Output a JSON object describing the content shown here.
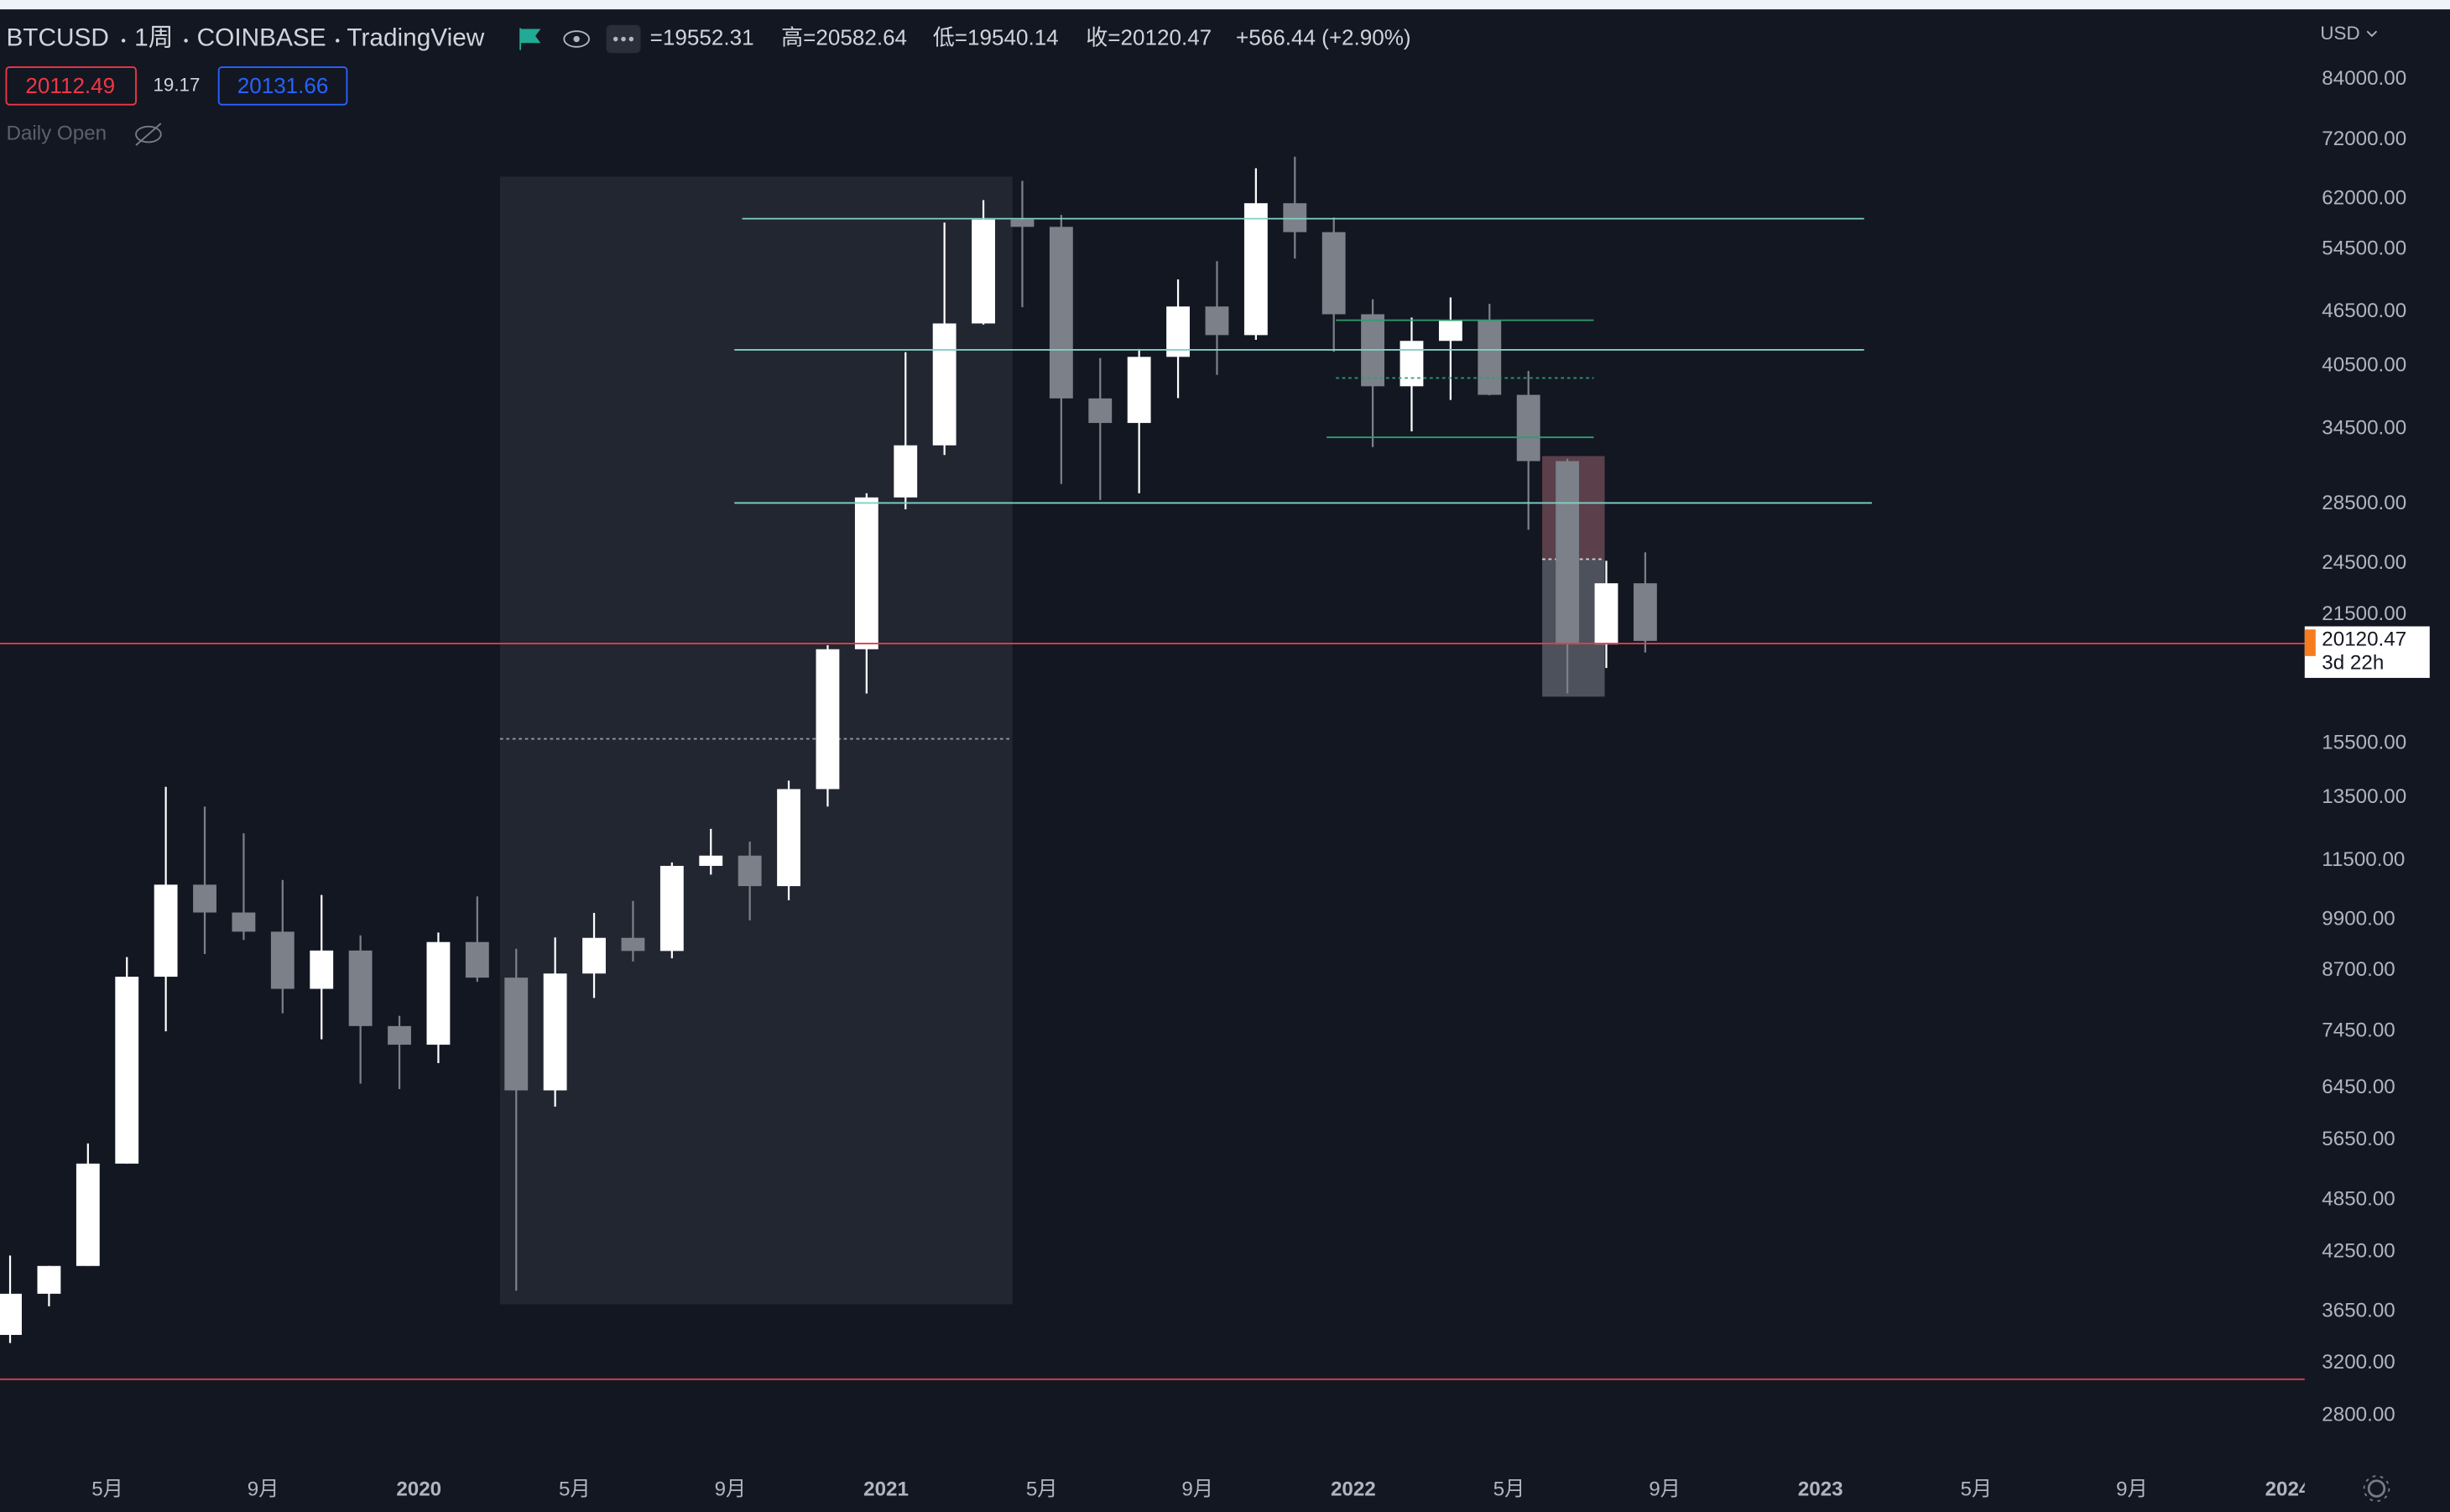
{
  "header": {
    "symbol": "BTCUSD",
    "interval": "1周",
    "exchange": "COINBASE",
    "source": "TradingView",
    "ohlc": [
      "=19552.31",
      "高=20582.64",
      "低=19540.14",
      "收=20120.47",
      "+566.44 (+2.90%)"
    ],
    "sell": "20112.49",
    "spread": "19.17",
    "buy": "20131.66",
    "indicator": "Daily Open",
    "currency": "USD",
    "last_price": "20120.47",
    "countdown": "3d 22h"
  },
  "chart_data": {
    "type": "candlestick",
    "log_scale": true,
    "grid": false,
    "up_color": "#ffffff",
    "down_color": "#7c8089",
    "x": [
      "2019-02",
      "2019-03",
      "2019-04",
      "2019-05",
      "2019-06",
      "2019-07",
      "2019-08",
      "2019-09",
      "2019-10",
      "2019-11",
      "2019-12",
      "2020-01",
      "2020-02",
      "2020-03",
      "2020-04",
      "2020-05",
      "2020-06",
      "2020-07",
      "2020-08",
      "2020-09",
      "2020-10",
      "2020-11",
      "2020-12",
      "2021-01",
      "2021-02",
      "2021-03",
      "2021-04",
      "2021-05",
      "2021-06",
      "2021-07",
      "2021-08",
      "2021-09",
      "2021-10",
      "2021-11",
      "2021-12",
      "2022-01",
      "2022-02",
      "2022-03",
      "2022-04",
      "2022-05",
      "2022-06",
      "2022-07",
      "2022-08"
    ],
    "open": [
      3440,
      3820,
      4100,
      5320,
      8560,
      10820,
      10080,
      9600,
      8300,
      9150,
      7550,
      7200,
      9350,
      8540,
      6410,
      8630,
      9450,
      9140,
      11350,
      11650,
      10780,
      13800,
      19700,
      28990,
      33100,
      45140,
      58800,
      57720,
      37300,
      35040,
      41460,
      47130,
      43820,
      61300,
      56950,
      46210,
      38470,
      43180,
      45540,
      37640,
      31800,
      19940,
      23300
    ],
    "high": [
      4210,
      4100,
      5600,
      9000,
      13880,
      13200,
      12330,
      10950,
      10540,
      9510,
      7750,
      9580,
      10500,
      9190,
      9460,
      10070,
      10380,
      11450,
      12470,
      12070,
      14100,
      19900,
      29300,
      41950,
      58350,
      61780,
      64900,
      59500,
      41330,
      42300,
      50500,
      52900,
      67000,
      69000,
      59100,
      47990,
      45820,
      48230,
      47450,
      40000,
      31990,
      24670,
      25210
    ],
    "low": [
      3370,
      3700,
      4100,
      5320,
      7450,
      9070,
      9400,
      7800,
      7300,
      6520,
      6430,
      6870,
      8450,
      3850,
      6150,
      8110,
      8900,
      8970,
      11100,
      9880,
      10400,
      13200,
      17600,
      28130,
      32300,
      45000,
      47050,
      30000,
      28800,
      29300,
      37330,
      39600,
      43300,
      53250,
      42000,
      32950,
      34300,
      37160,
      37600,
      26700,
      17600,
      18780,
      19540
    ],
    "close": [
      3820,
      4100,
      5320,
      8560,
      10820,
      10080,
      9600,
      8300,
      9150,
      7550,
      7200,
      9350,
      8540,
      6410,
      8630,
      9450,
      9140,
      11350,
      11650,
      10780,
      13800,
      19700,
      28990,
      33100,
      45140,
      58800,
      57720,
      37300,
      35040,
      41460,
      47130,
      43820,
      61300,
      56950,
      46210,
      38470,
      43180,
      45540,
      37640,
      31800,
      19940,
      23300,
      20120
    ],
    "xlim": [
      "2019-02",
      "2024-02"
    ],
    "xticks": [
      {
        "value": "2019-05",
        "label": "5月"
      },
      {
        "value": "2019-09",
        "label": "9月"
      },
      {
        "value": "2020-01",
        "label": "2020"
      },
      {
        "value": "2020-05",
        "label": "5月"
      },
      {
        "value": "2020-09",
        "label": "9月"
      },
      {
        "value": "2021-01",
        "label": "2021"
      },
      {
        "value": "2021-05",
        "label": "5月"
      },
      {
        "value": "2021-09",
        "label": "9月"
      },
      {
        "value": "2022-01",
        "label": "2022"
      },
      {
        "value": "2022-05",
        "label": "5月"
      },
      {
        "value": "2022-09",
        "label": "9月"
      },
      {
        "value": "2023-01",
        "label": "2023"
      },
      {
        "value": "2023-05",
        "label": "5月"
      },
      {
        "value": "2023-09",
        "label": "9月"
      },
      {
        "value": "2024-01",
        "label": "2024"
      }
    ],
    "ylim": [
      2450,
      99600
    ],
    "yticks": [
      {
        "value": 84000,
        "label": "84000.00"
      },
      {
        "value": 72000,
        "label": "72000.00"
      },
      {
        "value": 62000,
        "label": "62000.00"
      },
      {
        "value": 54500,
        "label": "54500.00"
      },
      {
        "value": 46500,
        "label": "46500.00"
      },
      {
        "value": 40500,
        "label": "40500.00"
      },
      {
        "value": 34500,
        "label": "34500.00"
      },
      {
        "value": 28500,
        "label": "28500.00"
      },
      {
        "value": 24500,
        "label": "24500.00"
      },
      {
        "value": 21500,
        "label": "21500.00"
      },
      {
        "value": 15500,
        "label": "15500.00"
      },
      {
        "value": 13500,
        "label": "13500.00"
      },
      {
        "value": 11500,
        "label": "11500.00"
      },
      {
        "value": 9900,
        "label": "9900.00"
      },
      {
        "value": 8700,
        "label": "8700.00"
      },
      {
        "value": 7450,
        "label": "7450.00"
      },
      {
        "value": 6450,
        "label": "6450.00"
      },
      {
        "value": 5650,
        "label": "5650.00"
      },
      {
        "value": 4850,
        "label": "4850.00"
      },
      {
        "value": 4250,
        "label": "4250.00"
      },
      {
        "value": 3650,
        "label": "3650.00"
      },
      {
        "value": 3200,
        "label": "3200.00"
      },
      {
        "value": 2800,
        "label": "2800.00"
      }
    ]
  }
}
